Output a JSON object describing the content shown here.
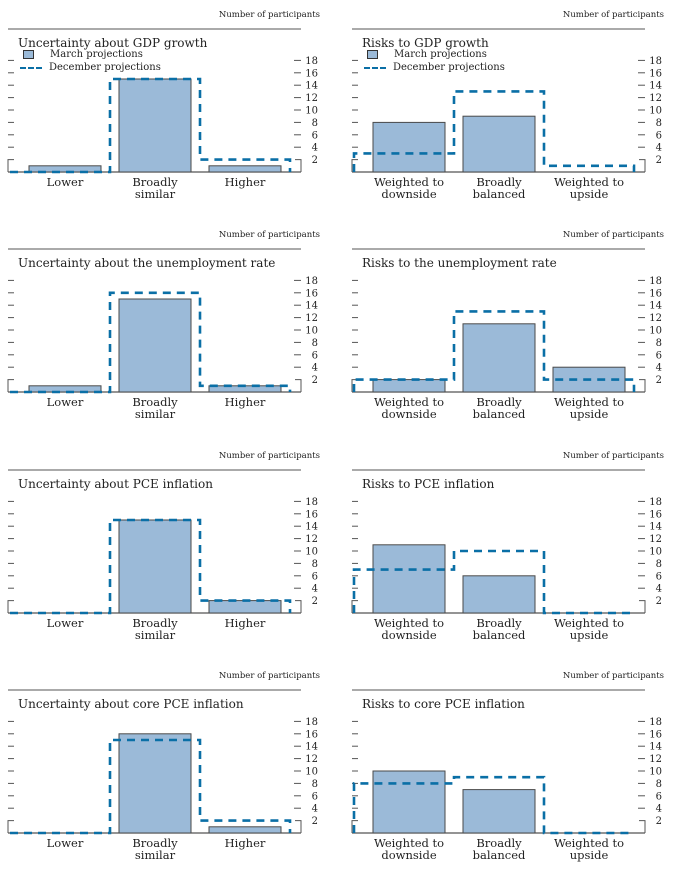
{
  "colors": {
    "march_fill": "#9bbad8",
    "march_stroke": "#4a4a4a",
    "december_line": "#0a6fa6",
    "axis": "#555555"
  },
  "legend": {
    "march": "March projections",
    "december": "December projections"
  },
  "units_label": "Number of participants",
  "chart_data": [
    {
      "type": "bar",
      "title": "Uncertainty about GDP growth",
      "ylabel": "Number of participants",
      "categories": [
        "Lower",
        "Broadly similar",
        "Higher"
      ],
      "category_lines": [
        [
          "Lower"
        ],
        [
          "Broadly",
          "similar"
        ],
        [
          "Higher"
        ]
      ],
      "series": [
        {
          "name": "March projections",
          "style": "bar",
          "values": [
            1,
            15,
            1
          ]
        },
        {
          "name": "December projections",
          "style": "dashed-step",
          "values": [
            0,
            15,
            2
          ]
        }
      ],
      "ylim": [
        0,
        18
      ],
      "yticks": [
        2,
        4,
        6,
        8,
        10,
        12,
        14,
        16,
        18
      ],
      "legend": true,
      "legend_position": "top-left"
    },
    {
      "type": "bar",
      "title": "Risks to GDP growth",
      "ylabel": "Number of participants",
      "categories": [
        "Weighted to downside",
        "Broadly balanced",
        "Weighted to upside"
      ],
      "category_lines": [
        [
          "Weighted to",
          "downside"
        ],
        [
          "Broadly",
          "balanced"
        ],
        [
          "Weighted to",
          "upside"
        ]
      ],
      "series": [
        {
          "name": "March projections",
          "style": "bar",
          "values": [
            8,
            9,
            0
          ]
        },
        {
          "name": "December projections",
          "style": "dashed-step",
          "values": [
            3,
            13,
            1
          ]
        }
      ],
      "ylim": [
        0,
        18
      ],
      "yticks": [
        2,
        4,
        6,
        8,
        10,
        12,
        14,
        16,
        18
      ],
      "legend": true,
      "legend_position": "top-left"
    },
    {
      "type": "bar",
      "title": "Uncertainty about the unemployment rate",
      "ylabel": "Number of participants",
      "categories": [
        "Lower",
        "Broadly similar",
        "Higher"
      ],
      "category_lines": [
        [
          "Lower"
        ],
        [
          "Broadly",
          "similar"
        ],
        [
          "Higher"
        ]
      ],
      "series": [
        {
          "name": "March projections",
          "style": "bar",
          "values": [
            1,
            15,
            1
          ]
        },
        {
          "name": "December projections",
          "style": "dashed-step",
          "values": [
            0,
            16,
            1
          ]
        }
      ],
      "ylim": [
        0,
        18
      ],
      "yticks": [
        2,
        4,
        6,
        8,
        10,
        12,
        14,
        16,
        18
      ],
      "legend": false
    },
    {
      "type": "bar",
      "title": "Risks to the unemployment rate",
      "ylabel": "Number of participants",
      "categories": [
        "Weighted to downside",
        "Broadly balanced",
        "Weighted to upside"
      ],
      "category_lines": [
        [
          "Weighted to",
          "downside"
        ],
        [
          "Broadly",
          "balanced"
        ],
        [
          "Weighted to",
          "upside"
        ]
      ],
      "series": [
        {
          "name": "March projections",
          "style": "bar",
          "values": [
            2,
            11,
            4
          ]
        },
        {
          "name": "December projections",
          "style": "dashed-step",
          "values": [
            2,
            13,
            2
          ]
        }
      ],
      "ylim": [
        0,
        18
      ],
      "yticks": [
        2,
        4,
        6,
        8,
        10,
        12,
        14,
        16,
        18
      ],
      "legend": false
    },
    {
      "type": "bar",
      "title": "Uncertainty about PCE inflation",
      "ylabel": "Number of participants",
      "categories": [
        "Lower",
        "Broadly similar",
        "Higher"
      ],
      "category_lines": [
        [
          "Lower"
        ],
        [
          "Broadly",
          "similar"
        ],
        [
          "Higher"
        ]
      ],
      "series": [
        {
          "name": "March projections",
          "style": "bar",
          "values": [
            0,
            15,
            2
          ]
        },
        {
          "name": "December projections",
          "style": "dashed-step",
          "values": [
            0,
            15,
            2
          ]
        }
      ],
      "ylim": [
        0,
        18
      ],
      "yticks": [
        2,
        4,
        6,
        8,
        10,
        12,
        14,
        16,
        18
      ],
      "legend": false
    },
    {
      "type": "bar",
      "title": "Risks to PCE inflation",
      "ylabel": "Number of participants",
      "categories": [
        "Weighted to downside",
        "Broadly balanced",
        "Weighted to upside"
      ],
      "category_lines": [
        [
          "Weighted to",
          "downside"
        ],
        [
          "Broadly",
          "balanced"
        ],
        [
          "Weighted to",
          "upside"
        ]
      ],
      "series": [
        {
          "name": "March projections",
          "style": "bar",
          "values": [
            11,
            6,
            0
          ]
        },
        {
          "name": "December projections",
          "style": "dashed-step",
          "values": [
            7,
            10,
            0
          ]
        }
      ],
      "ylim": [
        0,
        18
      ],
      "yticks": [
        2,
        4,
        6,
        8,
        10,
        12,
        14,
        16,
        18
      ],
      "legend": false
    },
    {
      "type": "bar",
      "title": "Uncertainty about core PCE inflation",
      "ylabel": "Number of participants",
      "categories": [
        "Lower",
        "Broadly similar",
        "Higher"
      ],
      "category_lines": [
        [
          "Lower"
        ],
        [
          "Broadly",
          "similar"
        ],
        [
          "Higher"
        ]
      ],
      "series": [
        {
          "name": "March projections",
          "style": "bar",
          "values": [
            0,
            16,
            1
          ]
        },
        {
          "name": "December projections",
          "style": "dashed-step",
          "values": [
            0,
            15,
            2
          ]
        }
      ],
      "ylim": [
        0,
        18
      ],
      "yticks": [
        2,
        4,
        6,
        8,
        10,
        12,
        14,
        16,
        18
      ],
      "legend": false
    },
    {
      "type": "bar",
      "title": "Risks to core PCE inflation",
      "ylabel": "Number of participants",
      "categories": [
        "Weighted to downside",
        "Broadly balanced",
        "Weighted to upside"
      ],
      "category_lines": [
        [
          "Weighted to",
          "downside"
        ],
        [
          "Broadly",
          "balanced"
        ],
        [
          "Weighted to",
          "upside"
        ]
      ],
      "series": [
        {
          "name": "March projections",
          "style": "bar",
          "values": [
            10,
            7,
            0
          ]
        },
        {
          "name": "December projections",
          "style": "dashed-step",
          "values": [
            8,
            9,
            0
          ]
        }
      ],
      "ylim": [
        0,
        18
      ],
      "yticks": [
        2,
        4,
        6,
        8,
        10,
        12,
        14,
        16,
        18
      ],
      "legend": false
    }
  ]
}
